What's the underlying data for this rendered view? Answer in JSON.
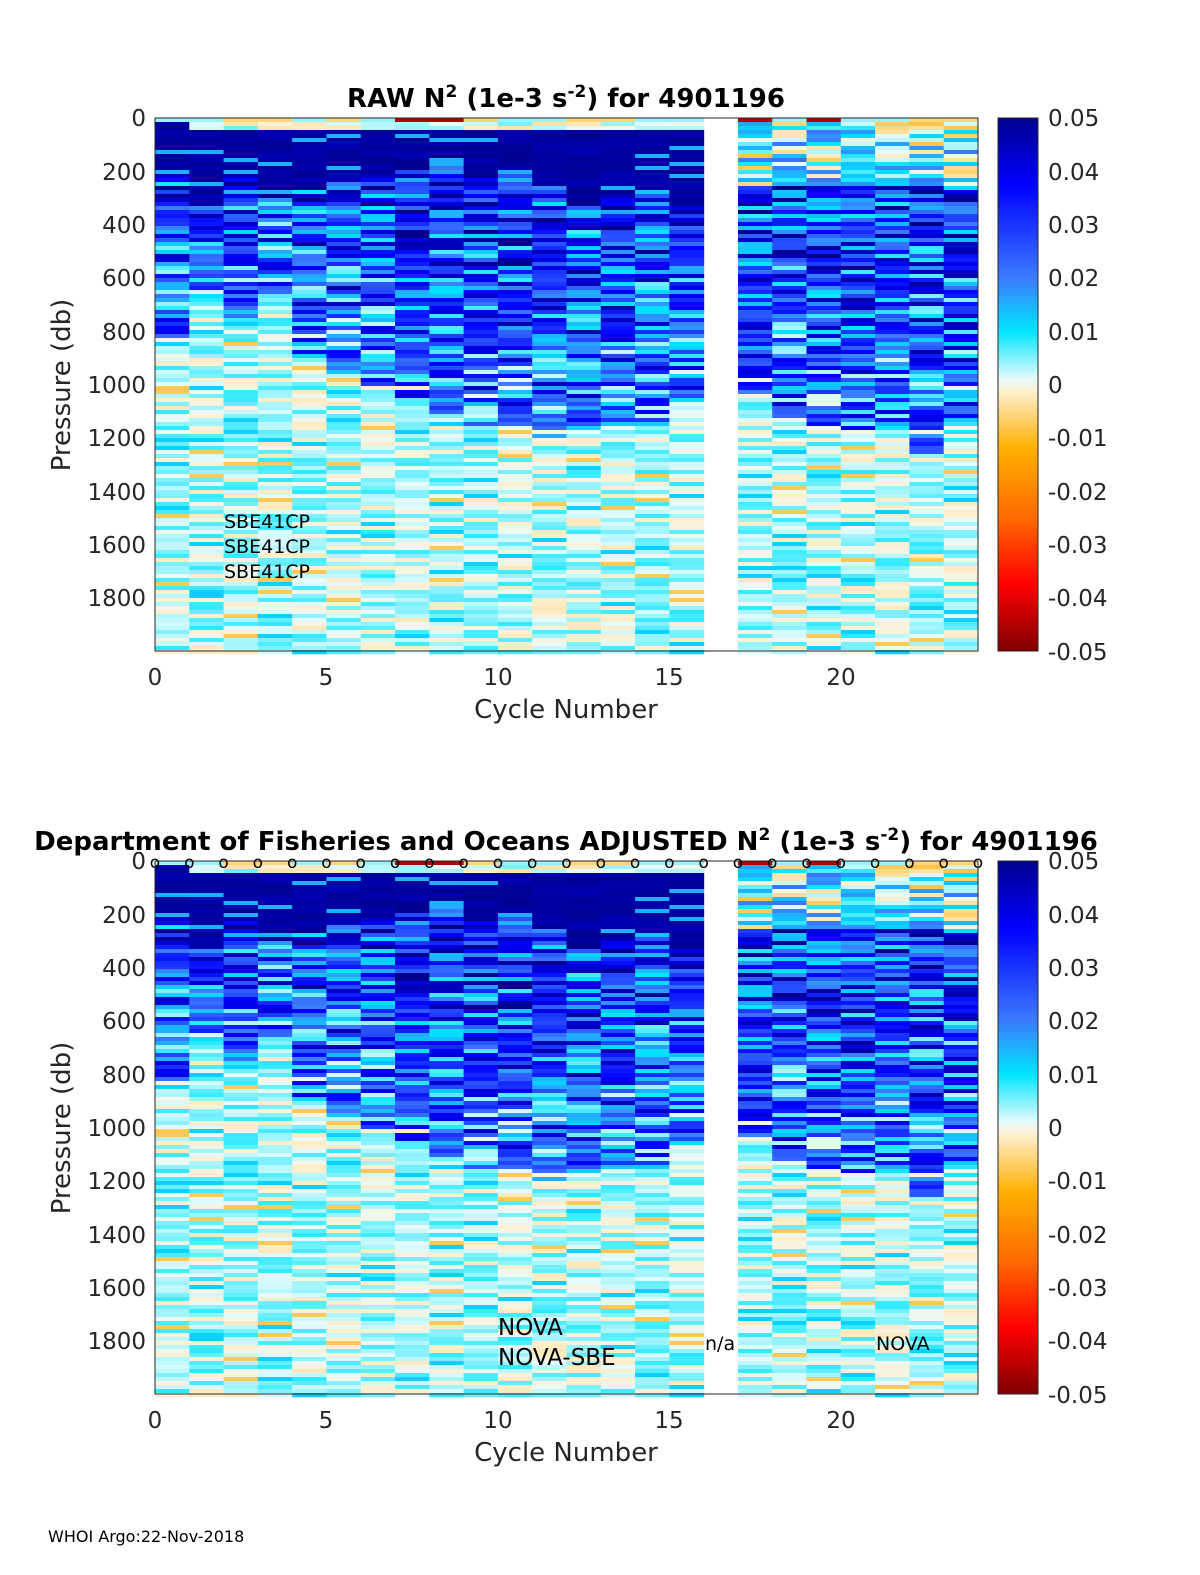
{
  "chart_data": [
    {
      "type": "heatmap",
      "title_main": "RAW N",
      "title_sup": "2",
      "title_units": " (1e-3 s",
      "title_units_sup": "-2",
      "title_tail": ") for 4901196",
      "xlabel": "Cycle Number",
      "ylabel": "Pressure (db)",
      "xlim": [
        0,
        24
      ],
      "ylim": [
        0,
        2000
      ],
      "y_reversed": true,
      "xticks": [
        "0",
        "5",
        "10",
        "15",
        "20"
      ],
      "yticks": [
        "0",
        "200",
        "400",
        "600",
        "800",
        "1000",
        "1200",
        "1400",
        "1600",
        "1800"
      ],
      "missing_cycles": [
        16
      ],
      "colorbar": {
        "range": [
          -0.05,
          0.05
        ],
        "ticks": [
          "0.05",
          "0.04",
          "0.03",
          "0.02",
          "0.01",
          "0",
          "-0.01",
          "-0.02",
          "-0.03",
          "-0.04",
          "-0.05"
        ]
      },
      "annotations": [
        "SBE41CP",
        "SBE41CP",
        "SBE41CP"
      ]
    },
    {
      "type": "heatmap",
      "title_main": "Department of Fisheries and Oceans  ADJUSTED N",
      "title_sup": "2",
      "title_units": " (1e-3 s",
      "title_units_sup": "-2",
      "title_tail": ") for 4901196",
      "xlabel": "Cycle Number",
      "ylabel": "Pressure (db)",
      "xlim": [
        0,
        24
      ],
      "ylim": [
        0,
        2000
      ],
      "y_reversed": true,
      "xticks": [
        "0",
        "5",
        "10",
        "15",
        "20"
      ],
      "yticks": [
        "0",
        "200",
        "400",
        "600",
        "800",
        "1000",
        "1200",
        "1400",
        "1600",
        "1800"
      ],
      "missing_cycles": [
        16
      ],
      "colorbar": {
        "range": [
          -0.05,
          0.05
        ],
        "ticks": [
          "0.05",
          "0.04",
          "0.03",
          "0.02",
          "0.01",
          "0",
          "-0.01",
          "-0.02",
          "-0.03",
          "-0.04",
          "-0.05"
        ]
      },
      "qc_marker": "o",
      "annotations": [
        "NOVA",
        "NOVA-SBE",
        "n/a",
        "NOVA"
      ]
    }
  ],
  "profiles": {
    "strong_layer_bottom_db": [
      210,
      320,
      220,
      300,
      260,
      230,
      210,
      170,
      180,
      210,
      200,
      250,
      300,
      290,
      260,
      320,
      0,
      60,
      80,
      70,
      100,
      80,
      60,
      60
    ],
    "dense_depth_db": [
      900,
      700,
      750,
      650,
      900,
      950,
      1000,
      1050,
      1100,
      1150,
      1150,
      1200,
      1150,
      1150,
      1150,
      1100,
      0,
      1050,
      1150,
      1150,
      1200,
      1200,
      1250,
      1200
    ],
    "surface_negative_cycles": [
      7,
      8,
      17,
      19
    ]
  },
  "footer": "WHOI Argo:22-Nov-2018"
}
